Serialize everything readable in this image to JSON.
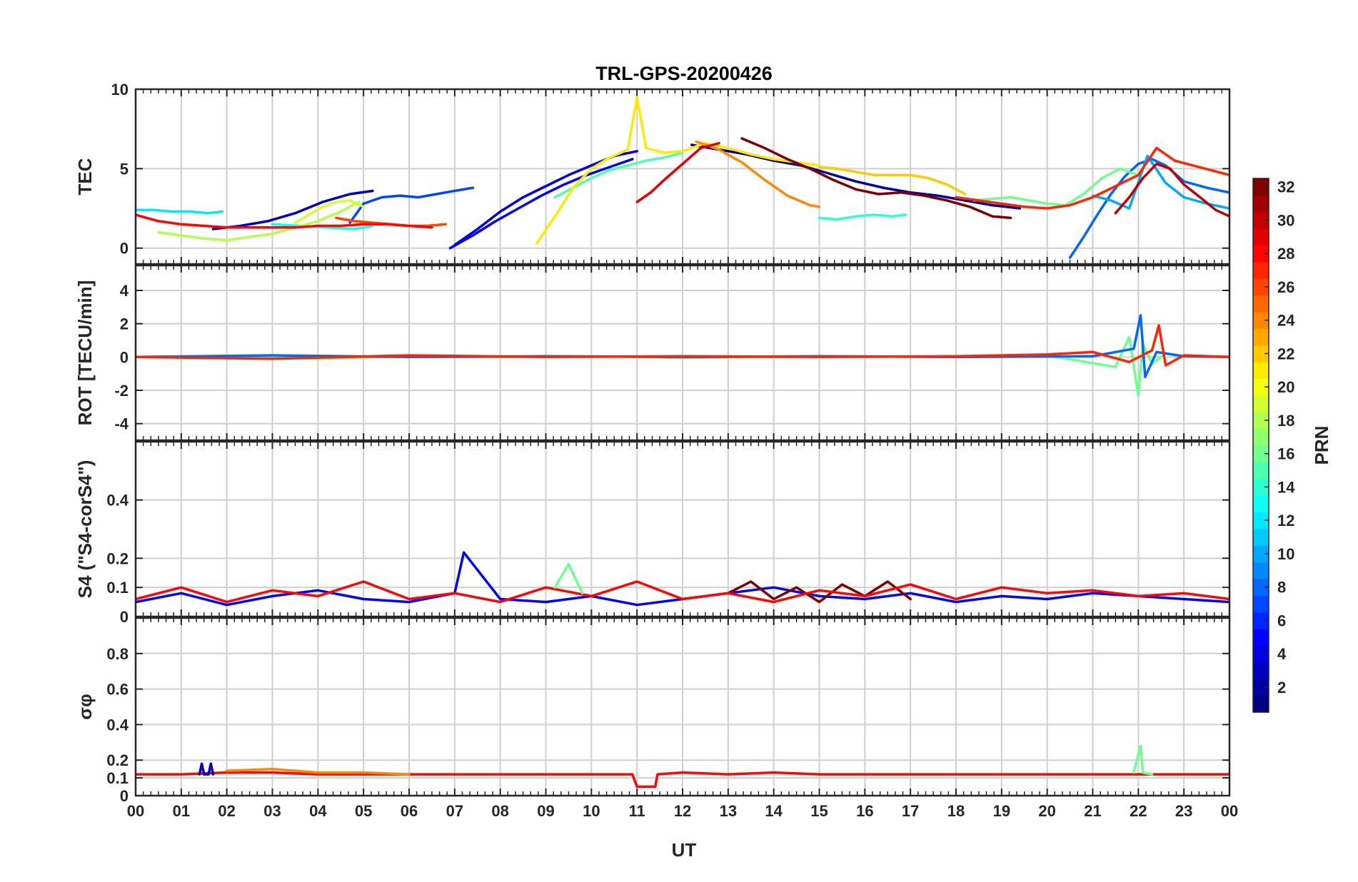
{
  "chart_data": {
    "type": "line",
    "title": "TRL-GPS-20200426",
    "xlabel": "UT",
    "xlim": [
      0,
      24
    ],
    "xticks": [
      "00",
      "01",
      "02",
      "03",
      "04",
      "05",
      "06",
      "07",
      "08",
      "09",
      "10",
      "11",
      "12",
      "13",
      "14",
      "15",
      "16",
      "17",
      "18",
      "19",
      "20",
      "21",
      "22",
      "23",
      "00"
    ],
    "grid": true,
    "colorbar": {
      "label": "PRN",
      "range": [
        1,
        32
      ],
      "ticks": [
        "2",
        "4",
        "6",
        "8",
        "10",
        "12",
        "14",
        "16",
        "18",
        "20",
        "22",
        "24",
        "26",
        "28",
        "30",
        "32"
      ],
      "colormap": "jet"
    },
    "panels": [
      {
        "ylabel": "TEC",
        "ylim": [
          -1,
          10
        ],
        "yticks": [
          "0",
          "5",
          "10"
        ],
        "series": [
          {
            "prn": 2,
            "x": [
              12.2,
              12.8,
              13.4,
              14.0,
              14.6,
              15.2,
              15.8,
              16.4,
              17.0,
              17.6,
              18.2,
              18.8,
              19.4
            ],
            "y": [
              6.5,
              6.2,
              5.9,
              5.5,
              5.2,
              4.7,
              4.2,
              3.8,
              3.5,
              3.3,
              3.0,
              2.7,
              2.5
            ]
          },
          {
            "prn": 3,
            "x": [
              1.7,
              2.3,
              2.9,
              3.5,
              4.1,
              4.7,
              5.2
            ],
            "y": [
              1.2,
              1.4,
              1.7,
              2.2,
              2.9,
              3.4,
              3.6
            ]
          },
          {
            "prn": 4,
            "x": [
              7.0,
              7.5,
              8.0,
              8.5,
              9.0,
              9.5,
              10.0,
              10.5,
              11.0
            ],
            "y": [
              0.2,
              1.2,
              2.3,
              3.2,
              3.9,
              4.6,
              5.2,
              5.8,
              6.1
            ]
          },
          {
            "prn": 5,
            "x": [
              6.9,
              7.4,
              7.9,
              8.4,
              8.9,
              9.4,
              9.9,
              10.4,
              10.9
            ],
            "y": [
              0.0,
              0.8,
              1.7,
              2.5,
              3.3,
              4.0,
              4.6,
              5.1,
              5.6
            ]
          },
          {
            "prn": 7,
            "x": [
              4.7,
              5.0,
              5.4,
              5.8,
              6.2,
              6.6,
              7.0,
              7.4
            ],
            "y": [
              1.6,
              2.8,
              3.2,
              3.3,
              3.2,
              3.4,
              3.6,
              3.8
            ]
          },
          {
            "prn": 8,
            "x": [
              20.5,
              20.8,
              21.1,
              21.4,
              21.7,
              22.0,
              22.3,
              22.6,
              23.0,
              23.5,
              24.0
            ],
            "y": [
              -0.6,
              0.7,
              2.1,
              3.4,
              4.5,
              5.3,
              5.6,
              5.2,
              4.2,
              3.8,
              3.5
            ]
          },
          {
            "prn": 10,
            "x": [
              21.0,
              21.4,
              21.8,
              22.2,
              22.6,
              23.0,
              23.5,
              24.0
            ],
            "y": [
              3.3,
              3.0,
              2.5,
              5.8,
              4.1,
              3.2,
              2.8,
              2.5
            ]
          },
          {
            "prn": 12,
            "x": [
              0.0,
              0.4,
              0.8,
              1.2,
              1.6,
              1.9
            ],
            "y": [
              2.4,
              2.4,
              2.3,
              2.3,
              2.2,
              2.3
            ]
          },
          {
            "prn": 13,
            "x": [
              3.0,
              3.6,
              4.2,
              4.8,
              5.2
            ],
            "y": [
              1.5,
              1.4,
              1.3,
              1.2,
              1.4
            ]
          },
          {
            "prn": 14,
            "x": [
              15.0,
              15.4,
              15.8,
              16.2,
              16.6,
              16.9
            ],
            "y": [
              1.9,
              1.8,
              2.0,
              2.1,
              2.0,
              2.1
            ]
          },
          {
            "prn": 15,
            "x": [
              9.2,
              9.6,
              10.0,
              10.4,
              10.8,
              11.2,
              11.6,
              12.0
            ],
            "y": [
              3.2,
              3.8,
              4.4,
              4.9,
              5.2,
              5.5,
              5.7,
              6.0
            ]
          },
          {
            "prn": 16,
            "x": [
              18.4,
              18.8,
              19.2,
              19.6,
              20.0,
              20.4,
              20.8,
              21.2,
              21.6,
              22.0
            ],
            "y": [
              3.0,
              3.1,
              3.2,
              3.0,
              2.8,
              2.7,
              3.4,
              4.4,
              5.0,
              4.6
            ]
          },
          {
            "prn": 18,
            "x": [
              0.5,
              1.0,
              1.5,
              2.0,
              2.5,
              3.0,
              3.5,
              4.0,
              4.5,
              4.9
            ],
            "y": [
              1.0,
              0.8,
              0.6,
              0.5,
              0.7,
              0.9,
              1.3,
              1.7,
              2.3,
              2.9
            ]
          },
          {
            "prn": 19,
            "x": [
              3.5,
              3.8,
              4.1,
              4.4,
              4.7,
              5.0
            ],
            "y": [
              1.6,
              2.1,
              2.6,
              2.9,
              3.0,
              2.6
            ]
          },
          {
            "prn": 21,
            "x": [
              8.8,
              9.2,
              9.6,
              10.0,
              10.4,
              10.8,
              11.0,
              11.2,
              11.6,
              12.0,
              12.5,
              13.0,
              13.5,
              14.0,
              14.5,
              15.0
            ],
            "y": [
              0.3,
              2.0,
              3.8,
              5.0,
              5.7,
              6.2,
              9.5,
              6.3,
              6.0,
              6.1,
              6.6,
              6.3,
              5.9,
              5.6,
              5.4,
              5.2
            ]
          },
          {
            "prn": 22,
            "x": [
              15.0,
              15.4,
              15.8,
              16.2,
              16.6,
              17.0,
              17.4,
              17.8,
              18.2
            ],
            "y": [
              5.1,
              5.0,
              4.8,
              4.6,
              4.6,
              4.6,
              4.4,
              4.0,
              3.4
            ]
          },
          {
            "prn": 24,
            "x": [
              12.3,
              12.8,
              13.3,
              13.8,
              14.3,
              14.8,
              15.0
            ],
            "y": [
              6.7,
              6.2,
              5.4,
              4.3,
              3.3,
              2.7,
              2.6
            ]
          },
          {
            "prn": 26,
            "x": [
              4.4,
              4.8,
              5.2,
              5.6,
              6.0,
              6.4,
              6.8
            ],
            "y": [
              1.9,
              1.7,
              1.6,
              1.5,
              1.4,
              1.4,
              1.5
            ]
          },
          {
            "prn": 27,
            "x": [
              18.0,
              18.5,
              19.0,
              19.5,
              20.0,
              20.5,
              21.0,
              21.5,
              22.0,
              22.4,
              22.8,
              23.2,
              23.6,
              24.0
            ],
            "y": [
              3.2,
              3.0,
              2.8,
              2.6,
              2.5,
              2.7,
              3.2,
              3.9,
              4.6,
              6.3,
              5.5,
              5.2,
              4.9,
              4.6
            ]
          },
          {
            "prn": 28,
            "x": [
              0.0,
              0.5,
              1.0,
              1.5,
              2.0,
              2.5,
              3.0,
              3.5,
              4.0,
              4.5,
              5.0,
              5.5,
              6.0,
              6.5
            ],
            "y": [
              2.1,
              1.7,
              1.5,
              1.4,
              1.3,
              1.3,
              1.3,
              1.3,
              1.4,
              1.4,
              1.5,
              1.5,
              1.4,
              1.3
            ]
          },
          {
            "prn": 29,
            "x": [
              11.0,
              11.3,
              11.6,
              12.0,
              12.4,
              12.8
            ],
            "y": [
              2.9,
              3.5,
              4.3,
              5.3,
              6.3,
              6.6
            ]
          },
          {
            "prn": 30,
            "x": [
              21.5,
              21.8,
              22.1,
              22.4,
              22.7,
              23.0,
              23.4,
              23.7,
              24.0
            ],
            "y": [
              2.2,
              3.2,
              4.4,
              5.3,
              5.0,
              4.0,
              3.1,
              2.4,
              2.0
            ]
          },
          {
            "prn": 32,
            "x": [
              13.3,
              13.8,
              14.3,
              14.8,
              15.3,
              15.8,
              16.3,
              16.8,
              17.3,
              17.8,
              18.3,
              18.8,
              19.2
            ],
            "y": [
              6.9,
              6.3,
              5.6,
              5.0,
              4.3,
              3.7,
              3.4,
              3.5,
              3.3,
              3.0,
              2.6,
              2.0,
              1.9
            ]
          }
        ]
      },
      {
        "ylabel": "ROT [TECU/min]",
        "ylim": [
          -5,
          5.5
        ],
        "yticks": [
          "-4",
          "-2",
          "0",
          "2",
          "4"
        ],
        "series": [
          {
            "prn": 16,
            "x": [
              0,
              2,
              4,
              6,
              8,
              10,
              12,
              14,
              16,
              18,
              20,
              21.5,
              21.8,
              22.0,
              22.1,
              22.3,
              22.6,
              23,
              24
            ],
            "y": [
              0,
              0.05,
              -0.1,
              0.05,
              0,
              0.05,
              -0.05,
              0,
              0.05,
              0,
              0.1,
              -0.6,
              1.2,
              -2.3,
              0.8,
              -0.4,
              0.2,
              0.05,
              0
            ]
          },
          {
            "prn": 8,
            "x": [
              0,
              3,
              6,
              9,
              12,
              15,
              18,
              21,
              21.9,
              22.05,
              22.15,
              22.4,
              23,
              24
            ],
            "y": [
              0,
              0.1,
              0,
              0.05,
              0,
              0.05,
              0,
              0.05,
              0.5,
              2.5,
              -1.2,
              0.3,
              0.05,
              0
            ]
          },
          {
            "prn": 27,
            "x": [
              0,
              3,
              6,
              9,
              12,
              15,
              18,
              20,
              21,
              21.8,
              22.3,
              22.45,
              22.6,
              23,
              24
            ],
            "y": [
              0,
              -0.1,
              0.1,
              0,
              0.05,
              0,
              0.05,
              0.15,
              0.3,
              -0.3,
              0.4,
              1.9,
              -0.5,
              0.1,
              0
            ]
          }
        ]
      },
      {
        "ylabel": "S4 (\"S4-corS4\")",
        "ylim": [
          0,
          0.6
        ],
        "yticks": [
          "0",
          "0.1",
          "0.2",
          "0.4"
        ],
        "series": [
          {
            "prn": 5,
            "x": [
              0,
              1,
              2,
              3,
              4,
              5,
              6,
              7,
              7.2,
              8,
              9,
              10,
              11,
              12,
              13,
              14,
              15,
              16,
              17,
              18,
              19,
              20,
              21,
              22,
              23,
              24
            ],
            "y": [
              0.05,
              0.08,
              0.04,
              0.07,
              0.09,
              0.06,
              0.05,
              0.08,
              0.22,
              0.06,
              0.05,
              0.07,
              0.04,
              0.06,
              0.08,
              0.1,
              0.07,
              0.06,
              0.08,
              0.05,
              0.07,
              0.06,
              0.08,
              0.07,
              0.06,
              0.05
            ]
          },
          {
            "prn": 32,
            "x": [
              13,
              13.5,
              14,
              14.5,
              15,
              15.5,
              16,
              16.5,
              17
            ],
            "y": [
              0.08,
              0.12,
              0.06,
              0.1,
              0.05,
              0.11,
              0.07,
              0.12,
              0.06
            ]
          },
          {
            "prn": 28,
            "x": [
              0,
              1,
              2,
              3,
              4,
              5,
              6,
              7,
              8,
              9,
              10,
              11,
              12,
              13,
              14,
              15,
              16,
              17,
              18,
              19,
              20,
              21,
              22,
              23,
              24
            ],
            "y": [
              0.06,
              0.1,
              0.05,
              0.09,
              0.07,
              0.12,
              0.06,
              0.08,
              0.05,
              0.1,
              0.07,
              0.12,
              0.06,
              0.08,
              0.05,
              0.09,
              0.07,
              0.11,
              0.06,
              0.1,
              0.08,
              0.09,
              0.07,
              0.08,
              0.06
            ]
          },
          {
            "prn": 16,
            "x": [
              9.2,
              9.5,
              9.8
            ],
            "y": [
              0.1,
              0.18,
              0.08
            ]
          }
        ]
      },
      {
        "ylabel": "σφ",
        "ylim": [
          0,
          1
        ],
        "yticks": [
          "0",
          "0.1",
          "0.2",
          "0.4",
          "0.6",
          "0.8"
        ],
        "series": [
          {
            "prn": 28,
            "x": [
              0,
              1,
              2,
              3,
              4,
              5,
              6,
              7,
              8,
              9,
              10,
              10.9,
              11.0,
              11.4,
              11.45,
              12,
              13,
              14,
              15,
              16,
              17,
              18,
              19,
              20,
              21,
              22,
              23,
              24
            ],
            "y": [
              0.12,
              0.12,
              0.13,
              0.13,
              0.12,
              0.12,
              0.12,
              0.12,
              0.12,
              0.12,
              0.12,
              0.12,
              0.05,
              0.05,
              0.12,
              0.13,
              0.12,
              0.13,
              0.12,
              0.12,
              0.12,
              0.12,
              0.12,
              0.12,
              0.12,
              0.12,
              0.12,
              0.12
            ]
          },
          {
            "prn": 24,
            "x": [
              2,
              3,
              4,
              5,
              6
            ],
            "y": [
              0.14,
              0.15,
              0.13,
              0.13,
              0.12
            ]
          },
          {
            "prn": 16,
            "x": [
              21.9,
              22.05,
              22.1,
              22.3
            ],
            "y": [
              0.13,
              0.28,
              0.13,
              0.12
            ]
          },
          {
            "prn": 3,
            "x": [
              1.4,
              1.45,
              1.5,
              1.6,
              1.65,
              1.7
            ],
            "y": [
              0.12,
              0.18,
              0.12,
              0.12,
              0.18,
              0.12
            ]
          }
        ]
      }
    ]
  }
}
